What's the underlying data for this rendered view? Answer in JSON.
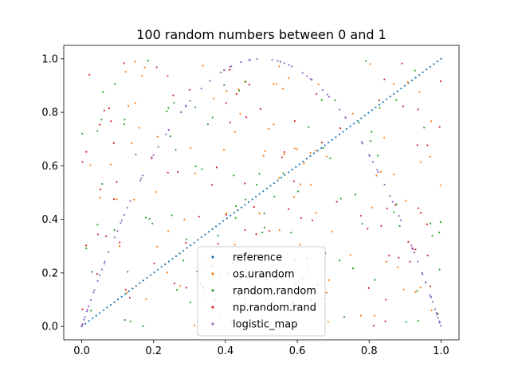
{
  "chart_data": {
    "type": "scatter",
    "title": "100 random numbers between 0 and 1",
    "xlabel": "",
    "ylabel": "",
    "xlim": [
      -0.05,
      1.05
    ],
    "ylim": [
      -0.05,
      1.05
    ],
    "xticks": [
      "0.0",
      "0.2",
      "0.4",
      "0.6",
      "0.8",
      "1.0"
    ],
    "yticks": [
      "0.0",
      "0.2",
      "0.4",
      "0.6",
      "0.8",
      "1.0"
    ],
    "grid": false,
    "legend_position": "lower-center",
    "n_points": 100,
    "series": [
      {
        "name": "reference",
        "color": "#1f77b4",
        "generator": "identity"
      },
      {
        "name": "os.urandom",
        "color": "#ff7f0e",
        "generator": "uniform"
      },
      {
        "name": "random.random",
        "color": "#2ca02c",
        "generator": "uniform"
      },
      {
        "name": "np.random.rand",
        "color": "#d62728",
        "generator": "uniform"
      },
      {
        "name": "logistic_map",
        "color": "#9467bd",
        "generator": "logistic_map"
      }
    ]
  }
}
